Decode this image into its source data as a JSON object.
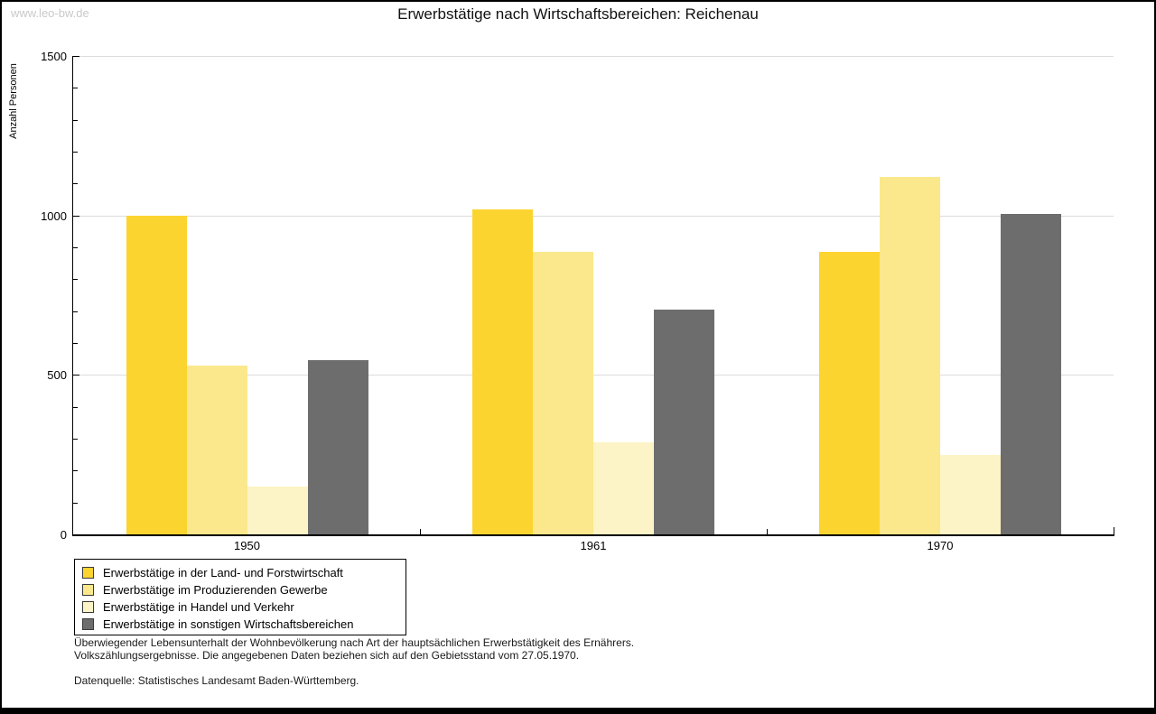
{
  "watermark": "www.leo-bw.de",
  "title": "Erwerbstätige nach Wirtschaftsbereichen: Reichenau",
  "footnote_line1": "Überwiegender Lebensunterhalt der Wohnbevölkerung nach Art der hauptsächlichen Erwerbstätigkeit des Ernährers.",
  "footnote_line2": "Volkszählungsergebnisse. Die angegebenen Daten beziehen sich auf den Gebietsstand vom 27.05.1970.",
  "source": "Datenquelle: Statistisches Landesamt Baden-Württemberg.",
  "chart_data": {
    "type": "bar",
    "title": "Erwerbstätige nach Wirtschaftsbereichen: Reichenau",
    "xlabel": "",
    "ylabel": "Anzahl Personen",
    "ylim": [
      0,
      1500
    ],
    "yticks": [
      0,
      500,
      1000,
      1500
    ],
    "minor_tick_interval": 100,
    "grid": true,
    "legend_position": "bottom-left",
    "categories": [
      "1950",
      "1961",
      "1970"
    ],
    "series": [
      {
        "name": "Erwerbstätige in der Land- und Forstwirtschaft",
        "color": "#fcd42f",
        "values": [
          1000,
          1020,
          885
        ]
      },
      {
        "name": "Erwerbstätige im Produzierenden Gewerbe",
        "color": "#fbe88c",
        "values": [
          530,
          885,
          1120
        ]
      },
      {
        "name": "Erwerbstätige in Handel und Verkehr",
        "color": "#fcf4c6",
        "values": [
          150,
          290,
          250
        ]
      },
      {
        "name": "Erwerbstätige in sonstigen Wirtschaftsbereichen",
        "color": "#6d6d6d",
        "values": [
          545,
          705,
          1005
        ]
      }
    ],
    "colors": {
      "gridline": "#dcdcdc",
      "axis": "#000000",
      "watermark": "#c9c9c9"
    }
  }
}
